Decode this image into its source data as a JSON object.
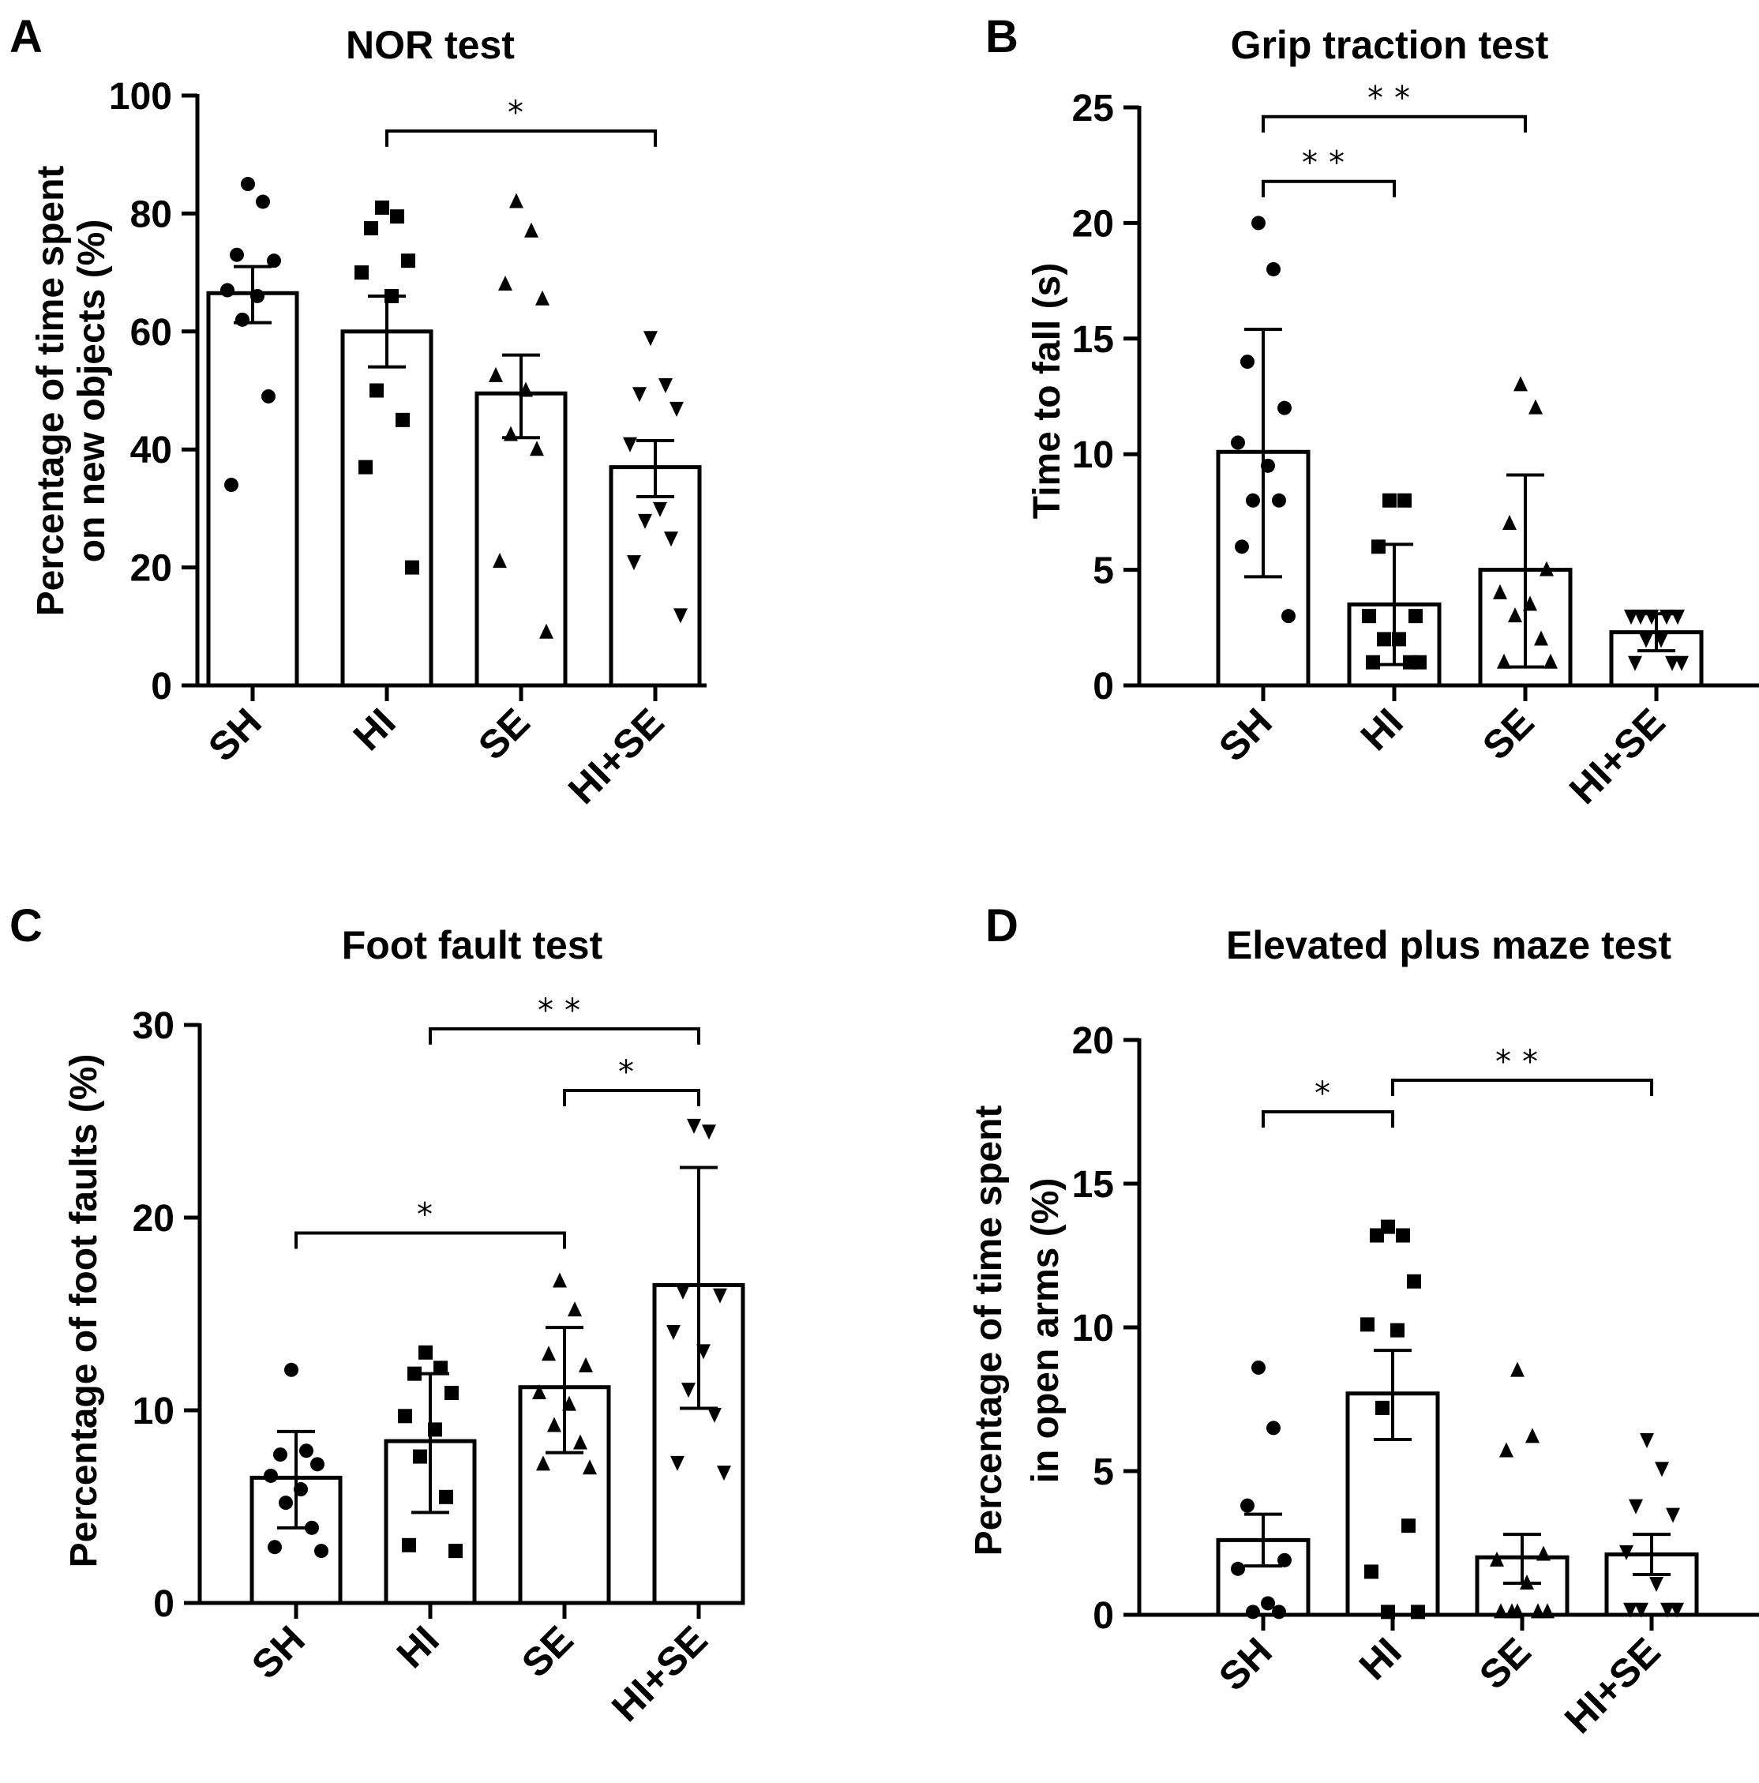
{
  "figure": {
    "colors": {
      "ink": "#000000",
      "bar_fill": "#ffffff"
    },
    "marker_icons": [
      "circle-icon",
      "square-icon",
      "triangle-up-icon",
      "triangle-down-icon"
    ]
  },
  "chart_data": [
    {
      "id": "A",
      "panel_letter": "A",
      "type": "bar",
      "title": "NOR test",
      "xlabel": "",
      "ylabel_lines": [
        "Percentage of time spent",
        "on new objects (%)"
      ],
      "categories": [
        "SH",
        "HI",
        "SE",
        "HI+SE"
      ],
      "ylim": [
        0,
        100
      ],
      "yticks": [
        0,
        20,
        40,
        60,
        80,
        100
      ],
      "values": [
        66.5,
        60,
        49.5,
        37
      ],
      "error_low": [
        61.5,
        54,
        42,
        32
      ],
      "error_high": [
        71,
        66,
        56,
        41.5
      ],
      "points": [
        [
          85,
          82,
          73,
          72,
          67,
          66,
          62,
          49,
          34
        ],
        [
          81,
          79.5,
          77.5,
          72,
          70,
          66,
          50,
          45,
          37,
          20
        ],
        [
          82,
          77,
          68,
          65.5,
          52.5,
          50,
          42.5,
          40,
          21,
          9
        ],
        [
          59,
          51,
          49.5,
          47,
          41,
          30,
          28,
          25,
          21,
          12
        ]
      ],
      "significance": [
        {
          "from": "HI",
          "to": "HI+SE",
          "y": 94,
          "label": "*"
        }
      ]
    },
    {
      "id": "B",
      "panel_letter": "B",
      "type": "bar",
      "title": "Grip traction test",
      "xlabel": "",
      "ylabel_lines": [
        "Time to fall (s)"
      ],
      "categories": [
        "SH",
        "HI",
        "SE",
        "HI+SE"
      ],
      "ylim": [
        0,
        25
      ],
      "yticks": [
        0,
        5,
        10,
        15,
        20,
        25
      ],
      "values": [
        10.1,
        3.5,
        5,
        2.3
      ],
      "error_low": [
        4.7,
        0.9,
        0.8,
        1.5
      ],
      "error_high": [
        15.4,
        6.1,
        9.1,
        3.1
      ],
      "points": [
        [
          20,
          18,
          14,
          12,
          10.5,
          9.5,
          8,
          8,
          6,
          3
        ],
        [
          8,
          8,
          6,
          3,
          3,
          2,
          2,
          1,
          1,
          1
        ],
        [
          13,
          12,
          7,
          5,
          4,
          3.5,
          3,
          2,
          1,
          1
        ],
        [
          3,
          3,
          3,
          3,
          3,
          2,
          2,
          1,
          1,
          1
        ]
      ],
      "significance": [
        {
          "from": "SH",
          "to": "SE",
          "y": 24.6,
          "label": "**"
        },
        {
          "from": "SH",
          "to": "HI",
          "y": 21.8,
          "label": "**"
        }
      ]
    },
    {
      "id": "C",
      "panel_letter": "C",
      "type": "bar",
      "title": "Foot fault test",
      "xlabel": "",
      "ylabel_lines": [
        "Percentage of foot faults (%)"
      ],
      "categories": [
        "SH",
        "HI",
        "SE",
        "HI+SE"
      ],
      "ylim": [
        0,
        30
      ],
      "yticks": [
        0,
        10,
        20,
        30
      ],
      "values": [
        6.5,
        8.4,
        11.2,
        16.5
      ],
      "error_low": [
        3.9,
        4.7,
        7.8,
        10.1
      ],
      "error_high": [
        8.9,
        11.9,
        14.3,
        22.6
      ],
      "points": [
        [
          12.1,
          7.9,
          7.7,
          7.2,
          6.6,
          5.9,
          5.2,
          3.9,
          2.9,
          2.7
        ],
        [
          13,
          12.2,
          11.9,
          10.9,
          9.7,
          9,
          7.6,
          5.5,
          3,
          2.7
        ],
        [
          16.7,
          15.2,
          12.9,
          12.3,
          10.9,
          10.3,
          9.2,
          8.3,
          7.2,
          7
        ],
        [
          24.8,
          24.5,
          16.2,
          16,
          14.1,
          13.1,
          11.1,
          9.8,
          7.3,
          6.8
        ]
      ],
      "significance": [
        {
          "from": "HI",
          "to": "HI+SE",
          "y": 29.8,
          "label": "**"
        },
        {
          "from": "SE",
          "to": "HI+SE",
          "y": 26.6,
          "label": "*"
        },
        {
          "from": "SH",
          "to": "SE",
          "y": 19.2,
          "label": "*"
        }
      ]
    },
    {
      "id": "D",
      "panel_letter": "D",
      "type": "bar",
      "title": "Elevated plus maze test",
      "xlabel": "",
      "ylabel_lines": [
        "Percentage of time spent",
        "in open arms (%)"
      ],
      "categories": [
        "SH",
        "HI",
        "SE",
        "HI+SE"
      ],
      "ylim": [
        0,
        20
      ],
      "yticks": [
        0,
        5,
        10,
        15,
        20
      ],
      "values": [
        2.6,
        7.7,
        2,
        2.1
      ],
      "error_low": [
        1.7,
        6.1,
        1.1,
        1.4
      ],
      "error_high": [
        3.5,
        9.2,
        2.8,
        2.8
      ],
      "points": [
        [
          8.6,
          6.5,
          3.8,
          1.9,
          1.6,
          0.4,
          0.1,
          0.1
        ],
        [
          13.5,
          13.2,
          13.2,
          11.6,
          10.1,
          9.9,
          7.2,
          3.1,
          1.5,
          0.1,
          0.1
        ],
        [
          8.5,
          6.2,
          5.7,
          2.1,
          1.9,
          1.1,
          0.1,
          0.1,
          0.1,
          0.1,
          0.1
        ],
        [
          6.1,
          5.1,
          3.8,
          3.5,
          2.2,
          1.1,
          0.2,
          0.2,
          0.2,
          0.2
        ]
      ],
      "significance": [
        {
          "from": "HI",
          "to": "HI+SE",
          "y": 18.6,
          "label": "**"
        },
        {
          "from": "SH",
          "to": "HI",
          "y": 17.5,
          "label": "*"
        }
      ]
    }
  ]
}
